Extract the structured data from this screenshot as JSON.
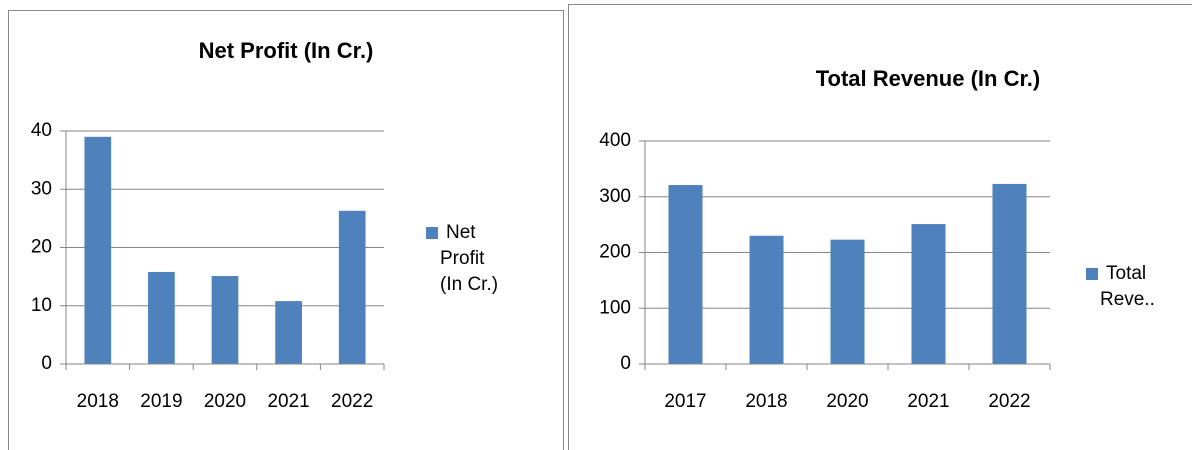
{
  "chart_data": [
    {
      "type": "bar",
      "title": "Net Profit (In Cr.)",
      "categories": [
        "2018",
        "2019",
        "2020",
        "2021",
        "2022"
      ],
      "series": [
        {
          "name": "Net Profit (In Cr.)",
          "color": "#4f81bd",
          "values": [
            39,
            15.8,
            15.1,
            10.8,
            26.3
          ]
        }
      ],
      "ylim": [
        0,
        40
      ],
      "yticks": [
        0,
        10,
        20,
        30,
        40
      ],
      "grid": true,
      "legend": "right"
    },
    {
      "type": "bar",
      "title": "Total Revenue (In Cr.)",
      "categories": [
        "2017",
        "2018",
        "2020",
        "2021",
        "2022"
      ],
      "series": [
        {
          "name": "Total Reve..",
          "color": "#4f81bd",
          "values": [
            321,
            230,
            223,
            251,
            323
          ]
        }
      ],
      "ylim": [
        0,
        400
      ],
      "yticks": [
        0,
        100,
        200,
        300,
        400
      ],
      "grid": true,
      "legend": "right"
    }
  ]
}
